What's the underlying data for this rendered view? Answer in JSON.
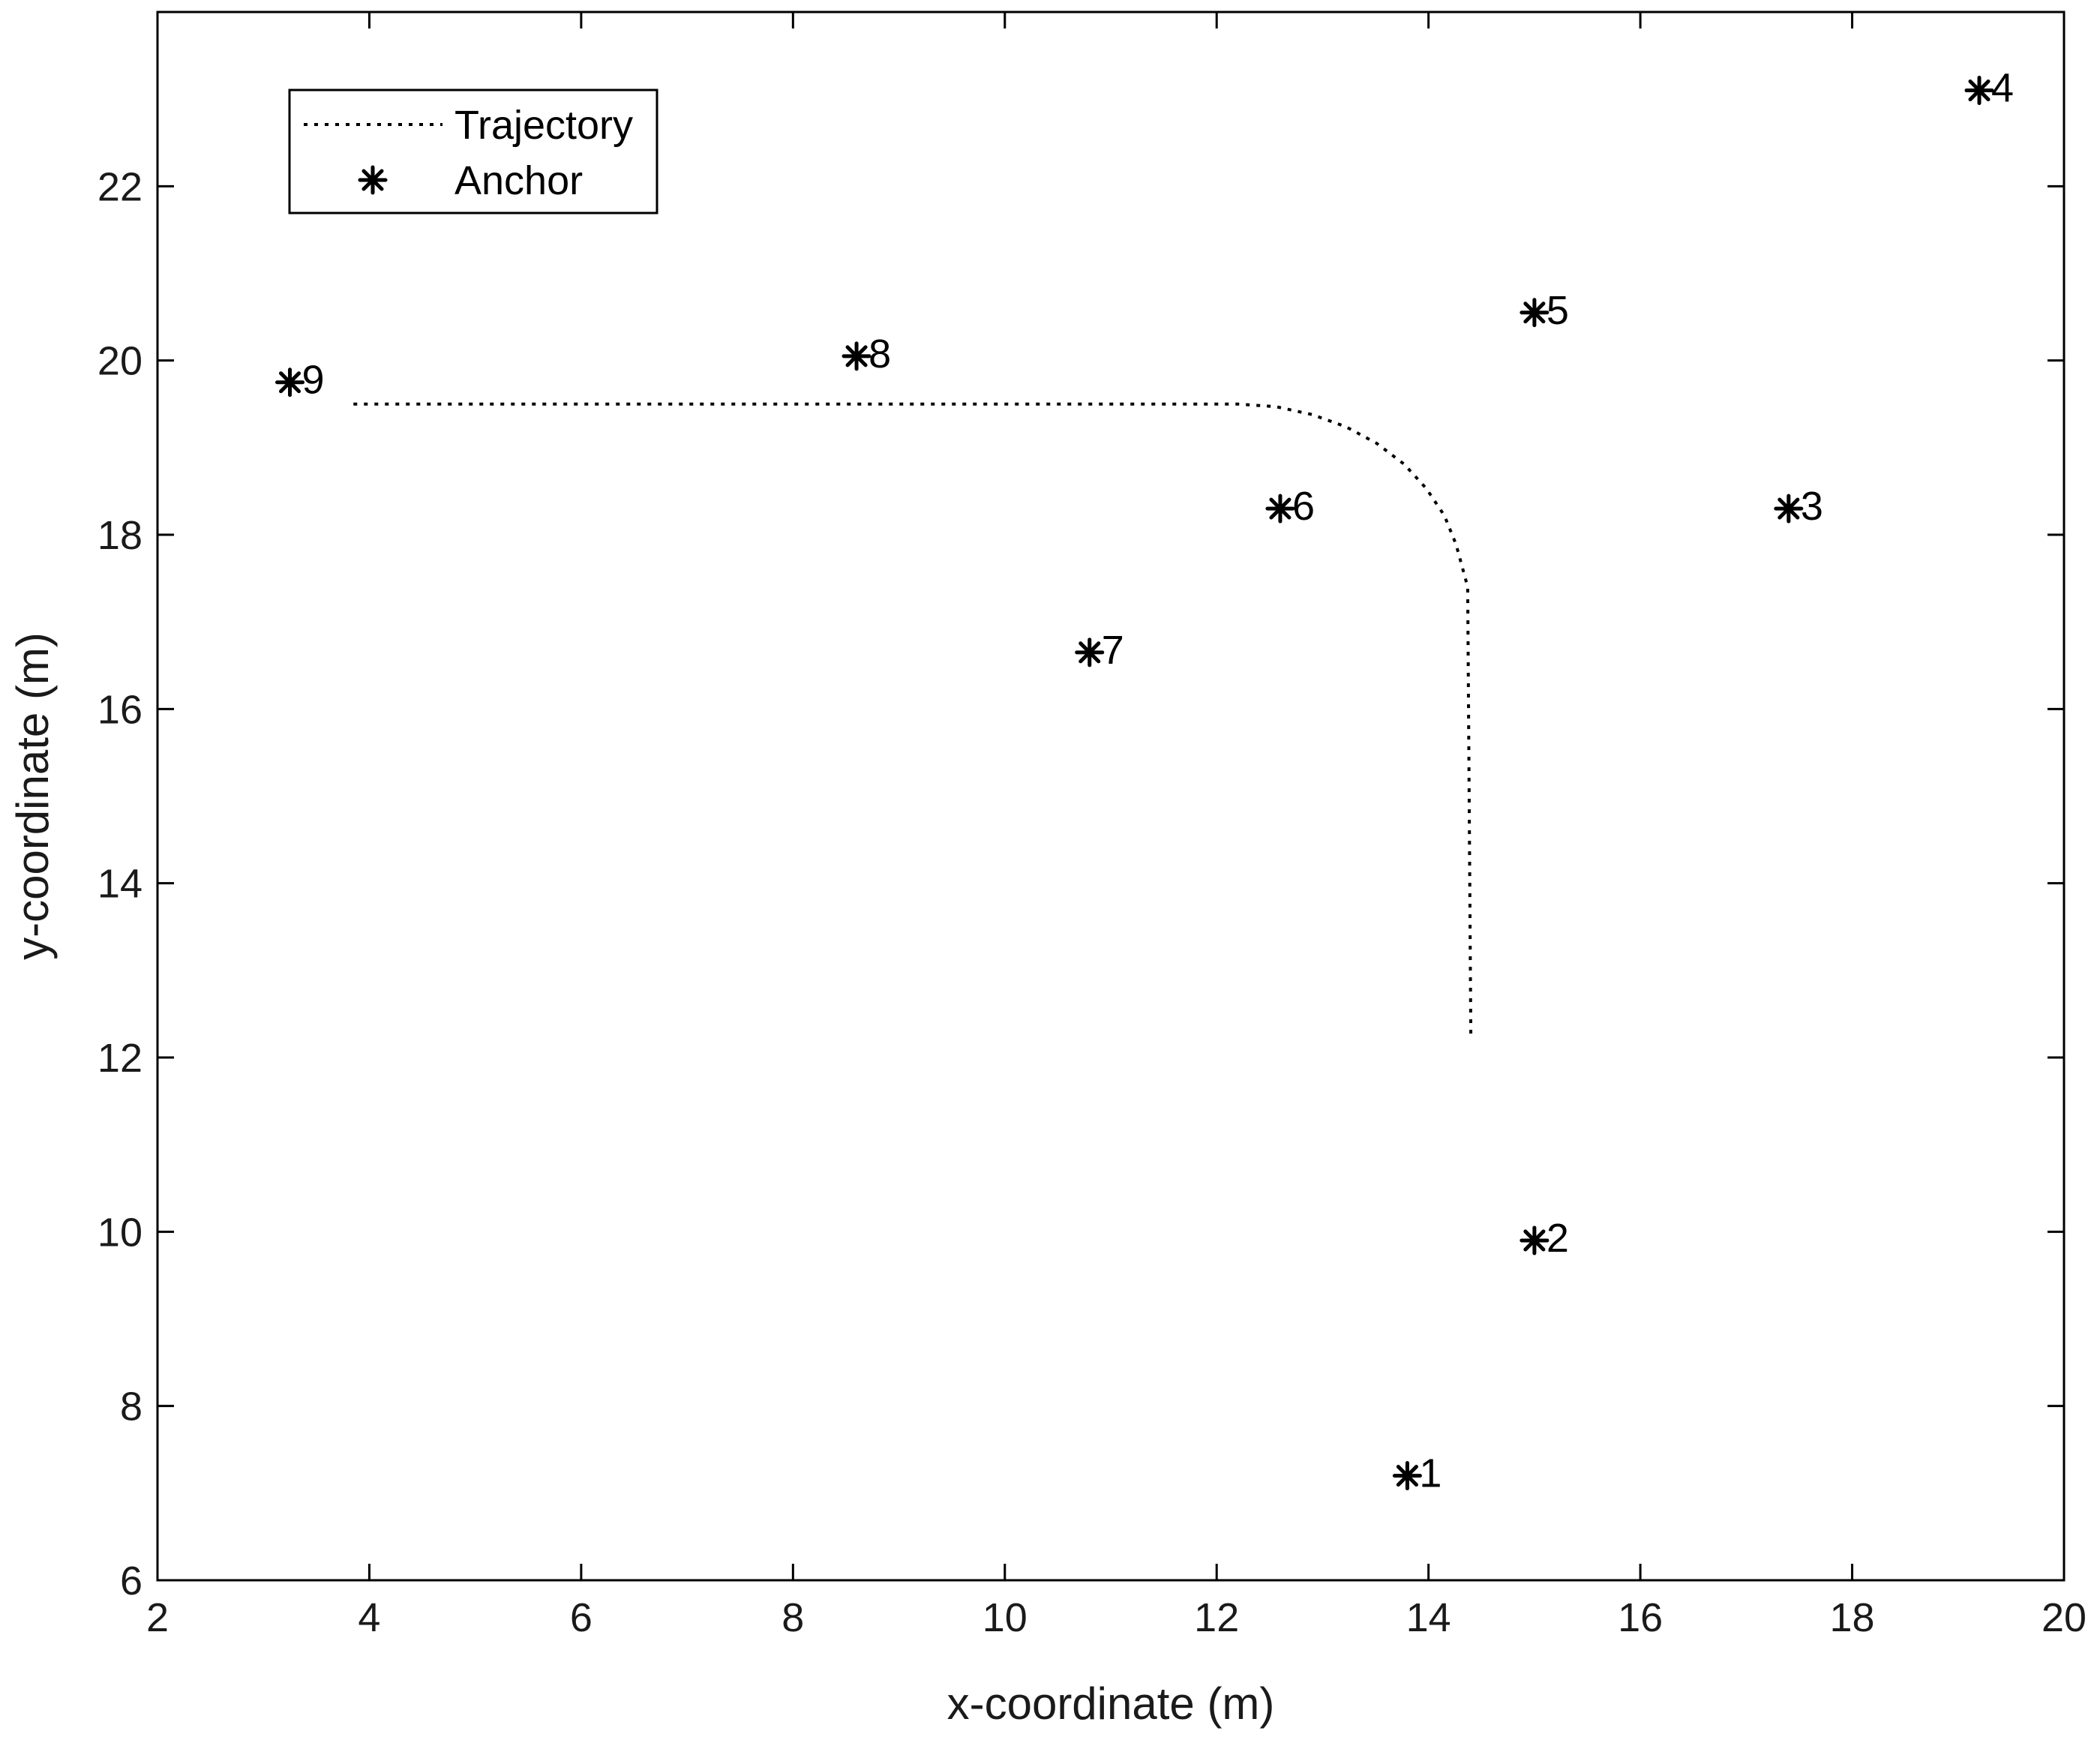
{
  "chart_data": {
    "type": "scatter",
    "xlabel": "x-coordinate (m)",
    "ylabel": "y-coordinate (m)",
    "xlim": [
      2,
      20
    ],
    "ylim": [
      6,
      24
    ],
    "xticks": [
      2,
      4,
      6,
      8,
      10,
      12,
      14,
      16,
      18,
      20
    ],
    "yticks": [
      6,
      8,
      10,
      12,
      14,
      16,
      18,
      20,
      22
    ],
    "grid": false,
    "legend": {
      "position": "top-left",
      "entries": [
        {
          "label": "Trajectory",
          "style": "dotted-line"
        },
        {
          "label": "Anchor",
          "style": "asterisk"
        }
      ]
    },
    "series": [
      {
        "name": "Trajectory",
        "type": "line",
        "points": [
          [
            3.85,
            19.5
          ],
          [
            12.2,
            19.5
          ],
          [
            12.56,
            19.47
          ],
          [
            12.9,
            19.38
          ],
          [
            13.22,
            19.24
          ],
          [
            13.51,
            19.05
          ],
          [
            13.77,
            18.81
          ],
          [
            13.98,
            18.53
          ],
          [
            14.15,
            18.22
          ],
          [
            14.26,
            17.89
          ],
          [
            14.37,
            17.4
          ],
          [
            14.4,
            12.2
          ]
        ]
      },
      {
        "name": "Anchor",
        "type": "scatter",
        "points": [
          {
            "label": "1",
            "x": 13.8,
            "y": 7.2
          },
          {
            "label": "2",
            "x": 15.0,
            "y": 9.9
          },
          {
            "label": "3",
            "x": 17.4,
            "y": 18.3
          },
          {
            "label": "4",
            "x": 19.2,
            "y": 23.1
          },
          {
            "label": "5",
            "x": 15.0,
            "y": 20.55
          },
          {
            "label": "6",
            "x": 12.6,
            "y": 18.3
          },
          {
            "label": "7",
            "x": 10.8,
            "y": 16.65
          },
          {
            "label": "8",
            "x": 8.6,
            "y": 20.05
          },
          {
            "label": "9",
            "x": 3.25,
            "y": 19.75
          }
        ]
      }
    ]
  }
}
